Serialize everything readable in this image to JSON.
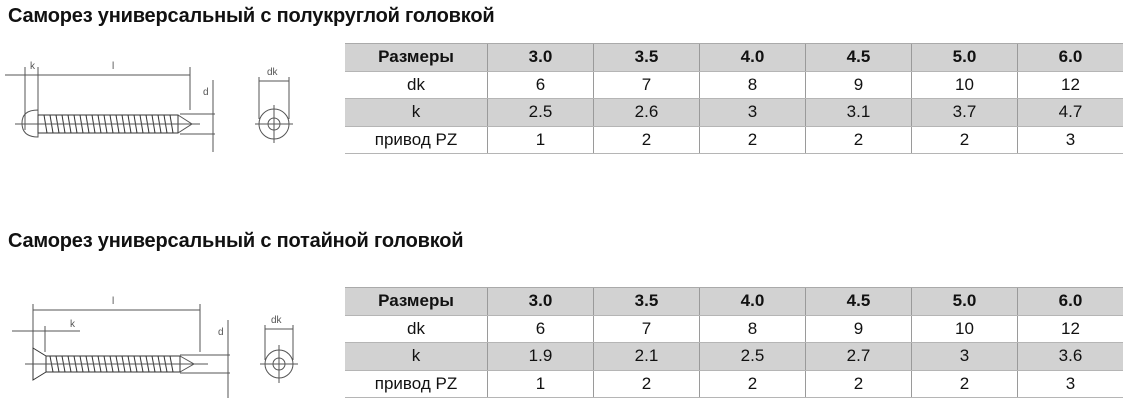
{
  "section1": {
    "title": "Саморез универсальный с полукруглой головкой",
    "drawing_labels": {
      "k": "k",
      "l": "l",
      "d": "d",
      "dk": "dk"
    },
    "table": {
      "header": [
        "Размеры",
        "3.0",
        "3.5",
        "4.0",
        "4.5",
        "5.0",
        "6.0"
      ],
      "rows": [
        [
          "dk",
          "6",
          "7",
          "8",
          "9",
          "10",
          "12"
        ],
        [
          "k",
          "2.5",
          "2.6",
          "3",
          "3.1",
          "3.7",
          "4.7"
        ],
        [
          "привод PZ",
          "1",
          "2",
          "2",
          "2",
          "2",
          "3"
        ]
      ]
    }
  },
  "section2": {
    "title": "Саморез универсальный с потайной головкой",
    "drawing_labels": {
      "k": "k",
      "l": "l",
      "d": "d",
      "dk": "dk"
    },
    "table": {
      "header": [
        "Размеры",
        "3.0",
        "3.5",
        "4.0",
        "4.5",
        "5.0",
        "6.0"
      ],
      "rows": [
        [
          "dk",
          "6",
          "7",
          "8",
          "9",
          "10",
          "12"
        ],
        [
          "k",
          "1.9",
          "2.1",
          "2.5",
          "2.7",
          "3",
          "3.6"
        ],
        [
          "привод PZ",
          "1",
          "2",
          "2",
          "2",
          "2",
          "3"
        ]
      ]
    }
  }
}
